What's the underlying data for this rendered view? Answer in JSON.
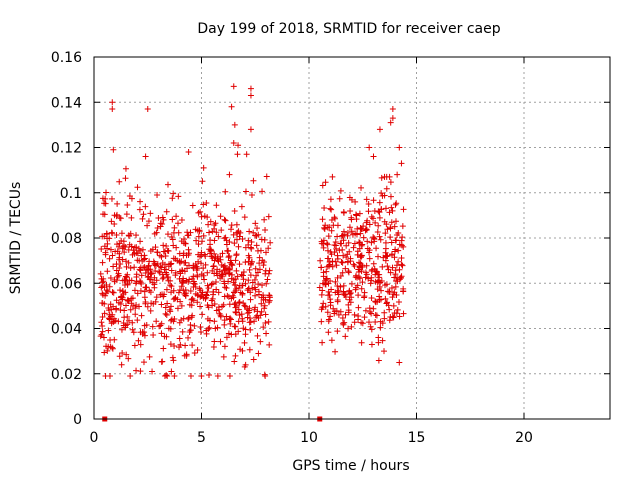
{
  "chart_data": {
    "type": "scatter",
    "title": "Day 199 of 2018, SRMTID for receiver caep",
    "xlabel": "GPS time / hours",
    "ylabel": "SRMTID / TECUs",
    "xlim": [
      0,
      24
    ],
    "ylim": [
      0,
      0.16
    ],
    "xticks": [
      0,
      5,
      10,
      15,
      20
    ],
    "xtick_labels": [
      "0",
      "5",
      "10",
      "15",
      "20"
    ],
    "yticks": [
      0,
      0.02,
      0.04,
      0.06,
      0.08,
      0.1,
      0.12,
      0.14,
      0.16
    ],
    "ytick_labels": [
      "0",
      "0.02",
      "0.04",
      "0.06",
      "0.08",
      "0.1",
      "0.12",
      "0.14",
      "0.16"
    ],
    "grid": true,
    "legend": "none",
    "series_color": "#e00000",
    "marker": "plus",
    "segments": [
      {
        "x_start": 0.3,
        "x_end": 8.2,
        "y_min": 0.019,
        "y_max": 0.147,
        "center": 0.059,
        "spread": 0.016,
        "count": 900
      },
      {
        "x_start": 10.5,
        "x_end": 14.4,
        "y_min": 0.025,
        "y_max": 0.137,
        "center": 0.066,
        "spread": 0.016,
        "count": 430
      }
    ],
    "outliers": [
      {
        "x": 0.85,
        "y": 0.14
      },
      {
        "x": 0.85,
        "y": 0.137
      },
      {
        "x": 2.5,
        "y": 0.137
      },
      {
        "x": 6.5,
        "y": 0.147
      },
      {
        "x": 7.3,
        "y": 0.146
      },
      {
        "x": 7.3,
        "y": 0.143
      },
      {
        "x": 6.4,
        "y": 0.138
      },
      {
        "x": 6.55,
        "y": 0.13
      },
      {
        "x": 7.3,
        "y": 0.128
      },
      {
        "x": 6.5,
        "y": 0.122
      },
      {
        "x": 6.7,
        "y": 0.121
      },
      {
        "x": 7.1,
        "y": 0.117
      },
      {
        "x": 6.3,
        "y": 0.108
      },
      {
        "x": 0.9,
        "y": 0.119
      },
      {
        "x": 4.4,
        "y": 0.118
      },
      {
        "x": 2.4,
        "y": 0.116
      },
      {
        "x": 5.1,
        "y": 0.111
      },
      {
        "x": 13.9,
        "y": 0.137
      },
      {
        "x": 13.9,
        "y": 0.133
      },
      {
        "x": 13.8,
        "y": 0.131
      },
      {
        "x": 13.3,
        "y": 0.128
      },
      {
        "x": 14.2,
        "y": 0.12
      },
      {
        "x": 12.8,
        "y": 0.12
      },
      {
        "x": 13.0,
        "y": 0.116
      },
      {
        "x": 14.3,
        "y": 0.113
      },
      {
        "x": 14.1,
        "y": 0.108
      },
      {
        "x": 14.2,
        "y": 0.025
      },
      {
        "x": 3.3,
        "y": 0.019
      },
      {
        "x": 3.6,
        "y": 0.021
      },
      {
        "x": 2.7,
        "y": 0.021
      }
    ],
    "bottom_markers": [
      {
        "x": 0.5,
        "y": 0
      },
      {
        "x": 10.5,
        "y": 0
      }
    ]
  }
}
